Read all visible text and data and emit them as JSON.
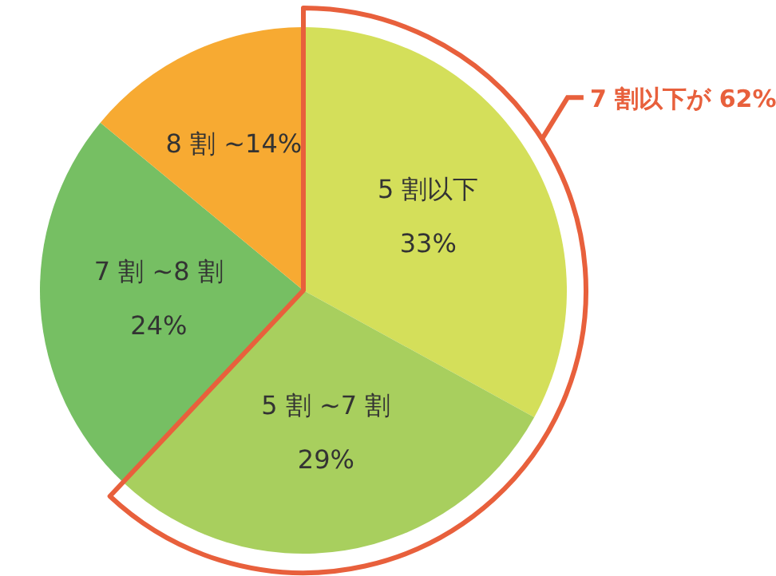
{
  "chart_data": {
    "type": "pie",
    "categories": [
      "5 割以下",
      "5 割 ~7 割",
      "7 割 ~8 割",
      "8 割 ~"
    ],
    "values": [
      33,
      29,
      24,
      14
    ],
    "value_labels": [
      "33%",
      "29%",
      "24%",
      "14%"
    ],
    "colors": [
      "#d4df5a",
      "#a8cf5e",
      "#76bf63",
      "#f7aa32"
    ],
    "annotations": [
      "7 割以下が 62%"
    ]
  }
}
